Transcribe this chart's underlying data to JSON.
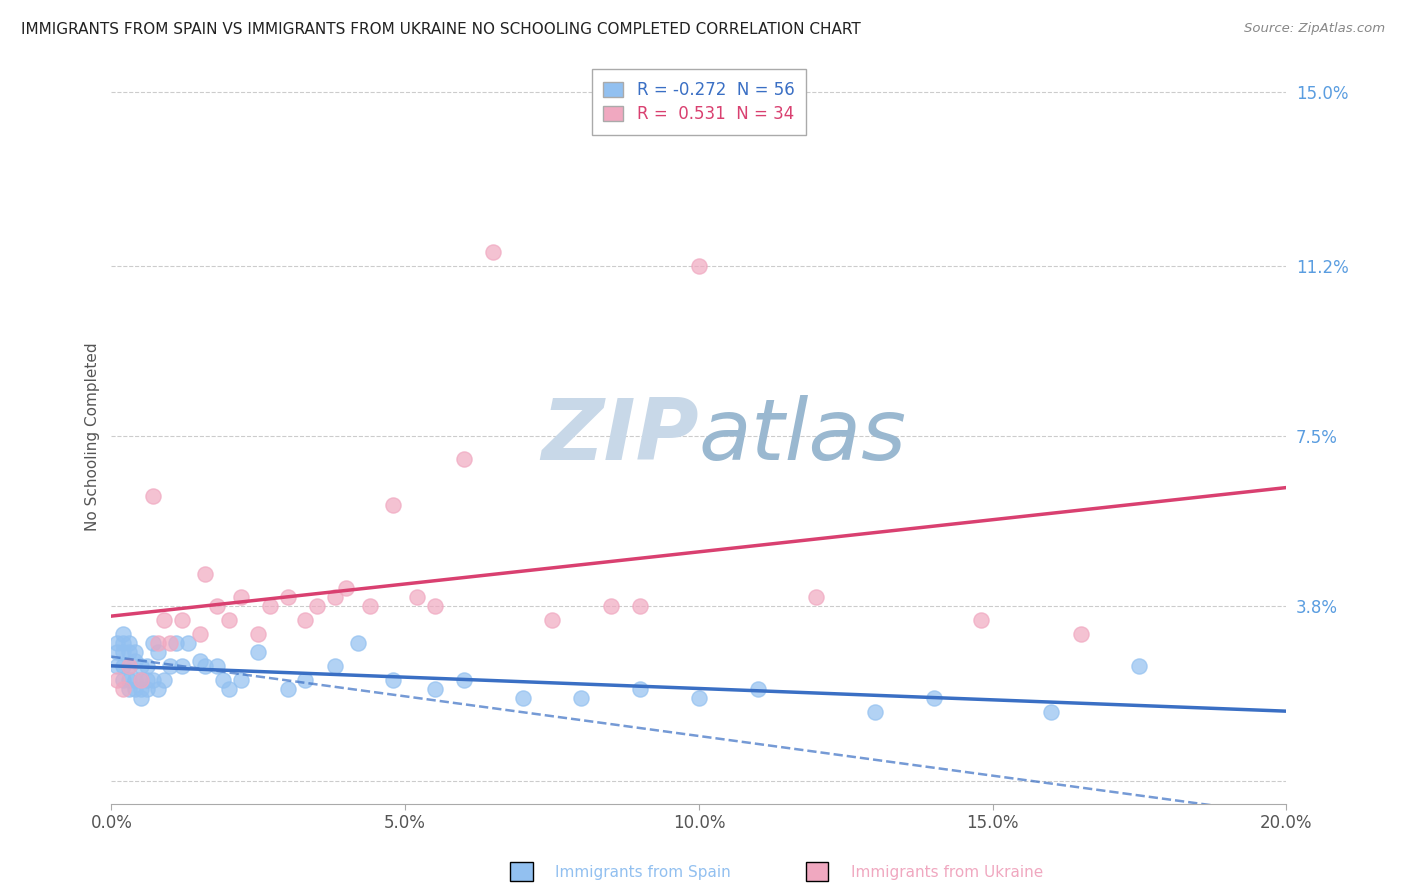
{
  "title": "IMMIGRANTS FROM SPAIN VS IMMIGRANTS FROM UKRAINE NO SCHOOLING COMPLETED CORRELATION CHART",
  "source": "Source: ZipAtlas.com",
  "ylabel": "No Schooling Completed",
  "xlim": [
    0.0,
    0.2
  ],
  "ylim": [
    -0.005,
    0.155
  ],
  "xticks": [
    0.0,
    0.05,
    0.1,
    0.15,
    0.2
  ],
  "xtick_labels": [
    "0.0%",
    "5.0%",
    "10.0%",
    "15.0%",
    "20.0%"
  ],
  "yticks": [
    0.0,
    0.038,
    0.075,
    0.112,
    0.15
  ],
  "ytick_labels": [
    "",
    "3.8%",
    "7.5%",
    "11.2%",
    "15.0%"
  ],
  "spain_color": "#92c0f0",
  "ukraine_color": "#f0a8c0",
  "spain_R": -0.272,
  "spain_N": 56,
  "ukraine_R": 0.531,
  "ukraine_N": 34,
  "spain_trend_color": "#3a6fc4",
  "ukraine_trend_color": "#d94070",
  "watermark_zip_color": "#c8d8e8",
  "watermark_atlas_color": "#9ab8d0",
  "legend_spain_label": "Immigrants from Spain",
  "legend_ukraine_label": "Immigrants from Ukraine",
  "spain_scatter_x": [
    0.001,
    0.001,
    0.001,
    0.002,
    0.002,
    0.002,
    0.002,
    0.002,
    0.003,
    0.003,
    0.003,
    0.003,
    0.003,
    0.004,
    0.004,
    0.004,
    0.004,
    0.005,
    0.005,
    0.005,
    0.005,
    0.006,
    0.006,
    0.006,
    0.007,
    0.007,
    0.008,
    0.008,
    0.009,
    0.01,
    0.011,
    0.012,
    0.013,
    0.015,
    0.016,
    0.018,
    0.019,
    0.02,
    0.022,
    0.025,
    0.03,
    0.033,
    0.038,
    0.042,
    0.048,
    0.055,
    0.06,
    0.07,
    0.08,
    0.09,
    0.1,
    0.11,
    0.13,
    0.14,
    0.16,
    0.175
  ],
  "spain_scatter_y": [
    0.025,
    0.03,
    0.028,
    0.022,
    0.025,
    0.028,
    0.03,
    0.032,
    0.02,
    0.022,
    0.025,
    0.028,
    0.03,
    0.02,
    0.022,
    0.026,
    0.028,
    0.018,
    0.02,
    0.022,
    0.025,
    0.02,
    0.022,
    0.025,
    0.022,
    0.03,
    0.02,
    0.028,
    0.022,
    0.025,
    0.03,
    0.025,
    0.03,
    0.026,
    0.025,
    0.025,
    0.022,
    0.02,
    0.022,
    0.028,
    0.02,
    0.022,
    0.025,
    0.03,
    0.022,
    0.02,
    0.022,
    0.018,
    0.018,
    0.02,
    0.018,
    0.02,
    0.015,
    0.018,
    0.015,
    0.025
  ],
  "ukraine_scatter_x": [
    0.001,
    0.002,
    0.003,
    0.005,
    0.007,
    0.008,
    0.009,
    0.01,
    0.012,
    0.015,
    0.016,
    0.018,
    0.02,
    0.022,
    0.025,
    0.027,
    0.03,
    0.033,
    0.035,
    0.038,
    0.04,
    0.044,
    0.048,
    0.052,
    0.055,
    0.06,
    0.065,
    0.075,
    0.085,
    0.09,
    0.1,
    0.12,
    0.148,
    0.165
  ],
  "ukraine_scatter_y": [
    0.022,
    0.02,
    0.025,
    0.022,
    0.062,
    0.03,
    0.035,
    0.03,
    0.035,
    0.032,
    0.045,
    0.038,
    0.035,
    0.04,
    0.032,
    0.038,
    0.04,
    0.035,
    0.038,
    0.04,
    0.042,
    0.038,
    0.06,
    0.04,
    0.038,
    0.07,
    0.115,
    0.035,
    0.038,
    0.038,
    0.112,
    0.04,
    0.035,
    0.032
  ]
}
